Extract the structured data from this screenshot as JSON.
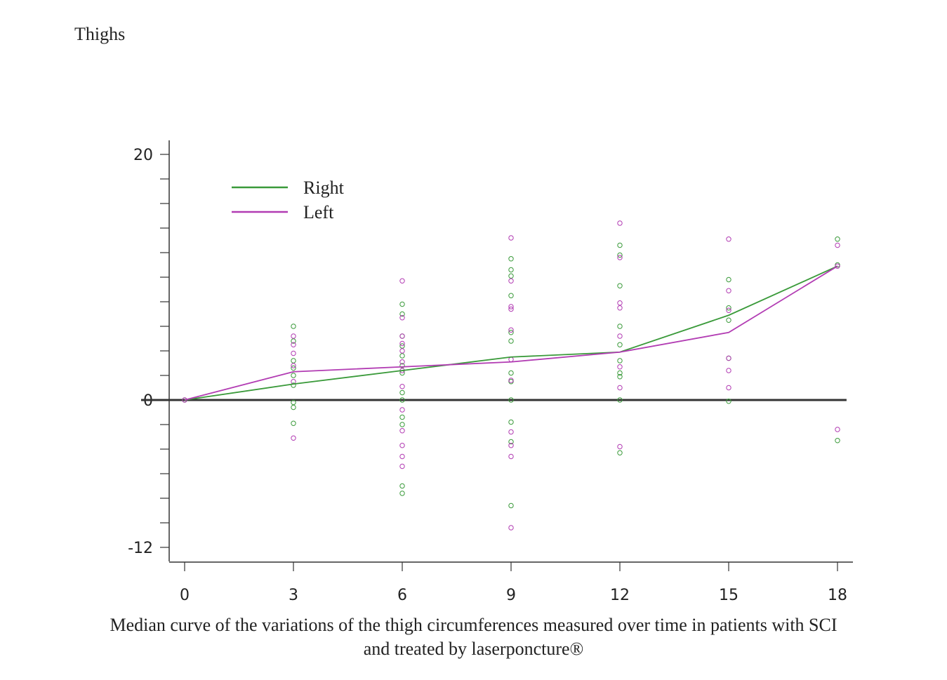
{
  "page": {
    "title": "Thighs",
    "caption_line1": "Median curve of the variations of the thigh circumferences measured over time in patients with SCI",
    "caption_line2": "and treated by laserponcture®"
  },
  "chart_data": {
    "type": "line",
    "x": [
      0,
      3,
      6,
      9,
      12,
      15,
      18
    ],
    "xticks": [
      0,
      3,
      6,
      9,
      12,
      15,
      18
    ],
    "ylim": [
      -12,
      20
    ],
    "yticks_labeled": [
      20,
      0,
      -12
    ],
    "grid": false,
    "legend_position": "top-left",
    "colors": {
      "Right": "#3a9a3a",
      "Left": "#b23cb3",
      "zero_line": "#333333"
    },
    "series": [
      {
        "name": "Right",
        "values": [
          0,
          1.3,
          2.4,
          3.5,
          3.9,
          6.9,
          10.9
        ]
      },
      {
        "name": "Left",
        "values": [
          0,
          2.3,
          2.7,
          3.1,
          3.9,
          5.5,
          10.9
        ]
      }
    ],
    "scatter": {
      "Right": [
        [
          0,
          0
        ],
        [
          3,
          6.0
        ],
        [
          3,
          4.8
        ],
        [
          3,
          3.2
        ],
        [
          3,
          2.6
        ],
        [
          3,
          2.0
        ],
        [
          3,
          1.2
        ],
        [
          3,
          -0.2
        ],
        [
          3,
          -0.6
        ],
        [
          3,
          -1.9
        ],
        [
          6,
          7.8
        ],
        [
          6,
          7.0
        ],
        [
          6,
          5.2
        ],
        [
          6,
          4.4
        ],
        [
          6,
          3.6
        ],
        [
          6,
          2.8
        ],
        [
          6,
          2.2
        ],
        [
          6,
          0.6
        ],
        [
          6,
          0
        ],
        [
          6,
          -1.4
        ],
        [
          6,
          -2.0
        ],
        [
          6,
          -7.0
        ],
        [
          6,
          -7.6
        ],
        [
          9,
          11.5
        ],
        [
          9,
          10.6
        ],
        [
          9,
          10.1
        ],
        [
          9,
          8.5
        ],
        [
          9,
          5.5
        ],
        [
          9,
          4.8
        ],
        [
          9,
          2.2
        ],
        [
          9,
          1.5
        ],
        [
          9,
          0
        ],
        [
          9,
          -1.8
        ],
        [
          9,
          -3.4
        ],
        [
          9,
          -8.6
        ],
        [
          12,
          12.6
        ],
        [
          12,
          11.8
        ],
        [
          12,
          9.3
        ],
        [
          12,
          6.0
        ],
        [
          12,
          4.5
        ],
        [
          12,
          3.2
        ],
        [
          12,
          2.2
        ],
        [
          12,
          1.9
        ],
        [
          12,
          0
        ],
        [
          12,
          -4.3
        ],
        [
          15,
          9.8
        ],
        [
          15,
          7.5
        ],
        [
          15,
          6.5
        ],
        [
          15,
          3.4
        ],
        [
          15,
          -0.1
        ],
        [
          18,
          13.1
        ],
        [
          18,
          11.0
        ],
        [
          18,
          -3.3
        ]
      ],
      "Left": [
        [
          0,
          0
        ],
        [
          3,
          5.2
        ],
        [
          3,
          4.5
        ],
        [
          3,
          3.8
        ],
        [
          3,
          2.8
        ],
        [
          3,
          1.5
        ],
        [
          3,
          -3.1
        ],
        [
          6,
          9.7
        ],
        [
          6,
          6.7
        ],
        [
          6,
          5.2
        ],
        [
          6,
          4.6
        ],
        [
          6,
          4.0
        ],
        [
          6,
          3.1
        ],
        [
          6,
          2.4
        ],
        [
          6,
          1.1
        ],
        [
          6,
          -0.8
        ],
        [
          6,
          -2.5
        ],
        [
          6,
          -3.7
        ],
        [
          6,
          -4.6
        ],
        [
          6,
          -5.4
        ],
        [
          9,
          13.2
        ],
        [
          9,
          9.7
        ],
        [
          9,
          7.6
        ],
        [
          9,
          7.4
        ],
        [
          9,
          5.7
        ],
        [
          9,
          3.3
        ],
        [
          9,
          1.6
        ],
        [
          9,
          -2.6
        ],
        [
          9,
          -3.7
        ],
        [
          9,
          -4.6
        ],
        [
          9,
          -10.4
        ],
        [
          12,
          14.4
        ],
        [
          12,
          11.6
        ],
        [
          12,
          7.9
        ],
        [
          12,
          7.5
        ],
        [
          12,
          5.2
        ],
        [
          12,
          2.7
        ],
        [
          12,
          1.0
        ],
        [
          12,
          -3.8
        ],
        [
          15,
          13.1
        ],
        [
          15,
          8.9
        ],
        [
          15,
          7.3
        ],
        [
          15,
          3.4
        ],
        [
          15,
          2.4
        ],
        [
          15,
          1.0
        ],
        [
          18,
          12.6
        ],
        [
          18,
          10.9
        ],
        [
          18,
          -2.4
        ]
      ]
    }
  }
}
